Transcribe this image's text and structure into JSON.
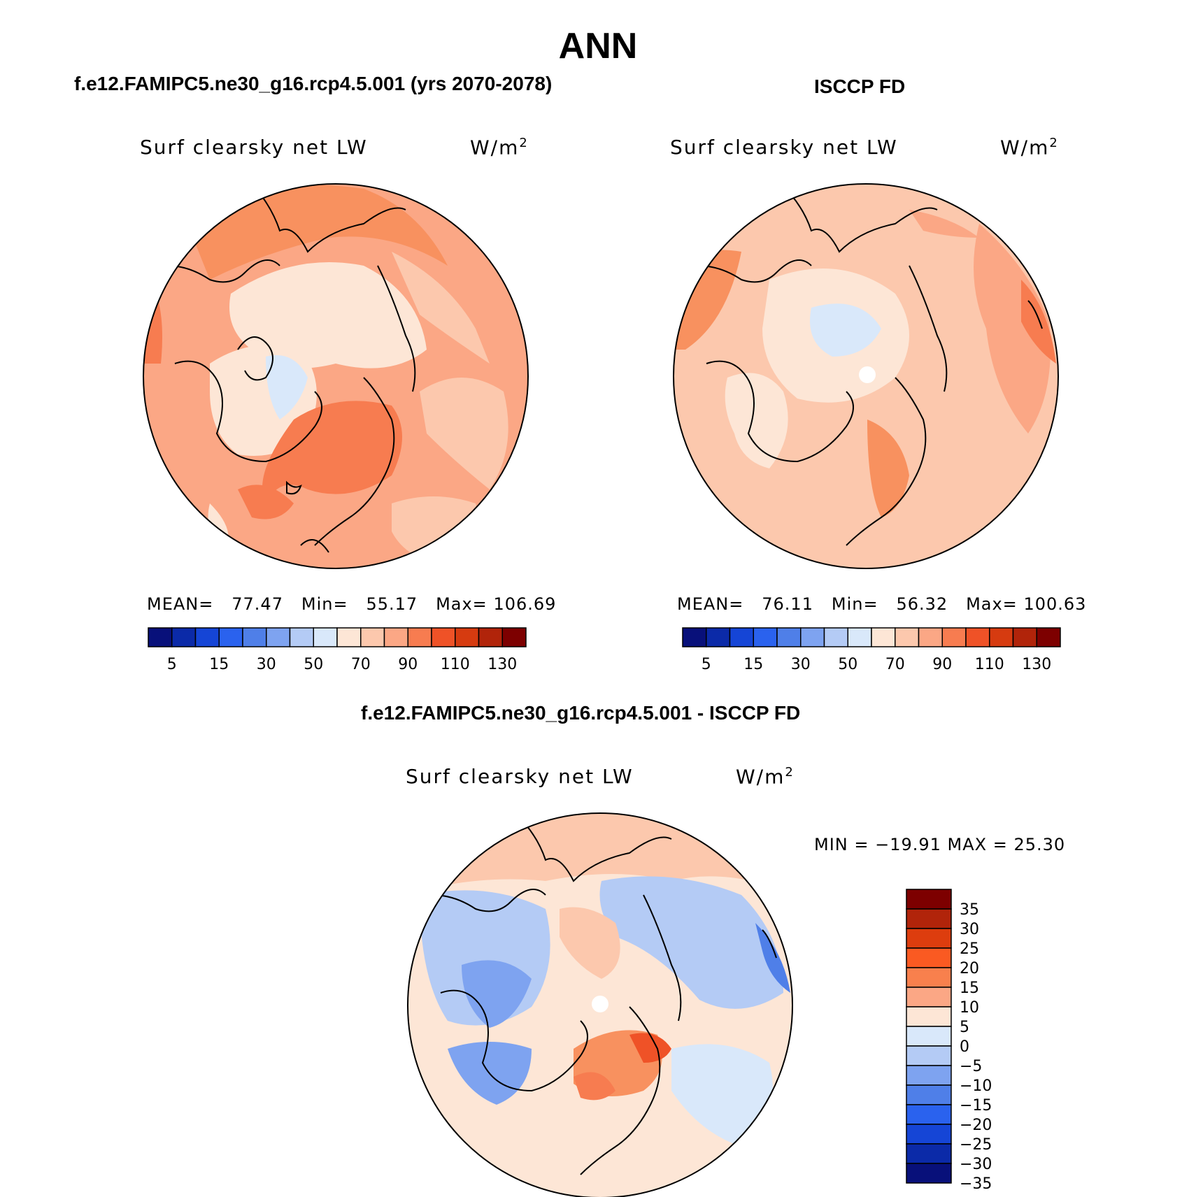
{
  "title": "ANN",
  "panels": [
    {
      "case_title": "f.e12.FAMIPC5.ne30_g16.rcp4.5.001 (yrs 2070-2078)",
      "variable": "Surf clearsky net LW",
      "units": "W/m",
      "units_sup": "2",
      "stats": {
        "mean_label": "MEAN=",
        "mean": "77.47",
        "min_label": "Min=",
        "min": "55.17",
        "max_label": "Max=",
        "max": "106.69"
      }
    },
    {
      "case_title": "ISCCP FD",
      "variable": "Surf clearsky net LW",
      "units": "W/m",
      "units_sup": "2",
      "stats": {
        "mean_label": "MEAN=",
        "mean": "76.11",
        "min_label": "Min=",
        "min": "56.32",
        "max_label": "Max=",
        "max": "100.63"
      }
    },
    {
      "case_title": "f.e12.FAMIPC5.ne30_g16.rcp4.5.001 - ISCCP FD",
      "variable": "Surf clearsky net LW",
      "units": "W/m",
      "units_sup": "2",
      "minmax": "MIN = −19.91 MAX =  25.30"
    }
  ],
  "colorbar_abs": {
    "colors": [
      "#08107a",
      "#0b2aa8",
      "#1545d6",
      "#2a62ee",
      "#4f7fe8",
      "#7ea3f0",
      "#b4cbf5",
      "#d9e8fa",
      "#fde6d6",
      "#fcc8ad",
      "#fba785",
      "#f77c50",
      "#ef5227",
      "#d63b10",
      "#b1240a",
      "#7d0000"
    ],
    "labels": [
      "5",
      "15",
      "30",
      "50",
      "70",
      "90",
      "110",
      "130"
    ]
  },
  "colorbar_diff": {
    "colors": [
      "#7d0000",
      "#b1240a",
      "#dd3d0e",
      "#fa5a22",
      "#f8804d",
      "#fba785",
      "#fde6d6",
      "#d9e8fa",
      "#b4cbf5",
      "#7ea3f0",
      "#4f7fe8",
      "#2a62ee",
      "#1545d6",
      "#0b2aa8",
      "#08107a"
    ],
    "labels": [
      "35",
      "30",
      "25",
      "20",
      "15",
      "10",
      "5",
      "0",
      "−5",
      "−10",
      "−15",
      "−20",
      "−25",
      "−30",
      "−35"
    ]
  }
}
